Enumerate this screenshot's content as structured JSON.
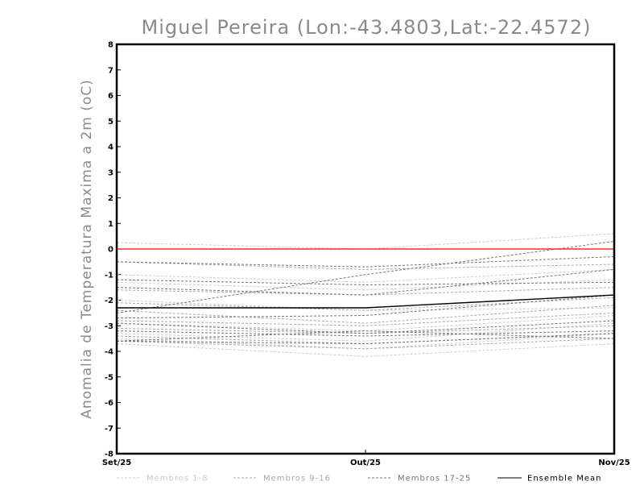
{
  "chart_data": {
    "type": "line",
    "title": "Miguel Pereira (Lon:-43.4803,Lat:-22.4572)",
    "ylabel": "Anomalia de Temperatura Maxima a 2m (oC)",
    "xlabel": "",
    "categories": [
      "Set/25",
      "Out/25",
      "Nov/25"
    ],
    "ylim": [
      -8,
      8
    ],
    "yticks": [
      "-8",
      "-7",
      "-6",
      "-5",
      "-4",
      "-3",
      "-2",
      "-1",
      "0",
      "1",
      "2",
      "3",
      "4",
      "5",
      "6",
      "7",
      "8"
    ],
    "reference_line": {
      "value": 0,
      "color": "#ff2a2a"
    },
    "grid": false,
    "legend": {
      "placement": "bottom",
      "entries": [
        {
          "label": "Membros 1-8",
          "color": "#cccccc",
          "style": "dashed"
        },
        {
          "label": "Membros 9-16",
          "color": "#aaaaaa",
          "style": "dashed"
        },
        {
          "label": "Membros 17-25",
          "color": "#777777",
          "style": "dashed"
        },
        {
          "label": "Ensemble Mean",
          "color": "#000000",
          "style": "solid"
        }
      ]
    },
    "groups": [
      {
        "color": "#cccccc",
        "members": [
          [
            0.25,
            0.0,
            0.6
          ],
          [
            -1.0,
            -1.3,
            -0.8
          ],
          [
            -1.3,
            -1.6,
            -1.2
          ],
          [
            -2.0,
            -2.4,
            -2.3
          ],
          [
            -2.9,
            -3.2,
            -2.6
          ],
          [
            -3.5,
            -3.9,
            -3.3
          ],
          [
            -3.7,
            -4.2,
            -3.7
          ],
          [
            -3.3,
            -3.6,
            -2.9
          ]
        ]
      },
      {
        "color": "#aaaaaa",
        "members": [
          [
            -0.5,
            -0.8,
            -0.6
          ],
          [
            -1.6,
            -1.8,
            -1.5
          ],
          [
            -2.1,
            -2.4,
            -1.9
          ],
          [
            -2.8,
            -3.0,
            -2.5
          ],
          [
            -3.1,
            -3.3,
            -3.0
          ],
          [
            -3.4,
            -3.7,
            -3.3
          ],
          [
            -3.6,
            -3.9,
            -3.5
          ],
          [
            -2.4,
            -2.9,
            -2.2
          ]
        ]
      },
      {
        "color": "#777777",
        "members": [
          [
            -2.5,
            -1.0,
            0.3
          ],
          [
            -0.5,
            -0.7,
            -0.3
          ],
          [
            -1.2,
            -1.4,
            -1.3
          ],
          [
            -1.5,
            -1.8,
            -0.8
          ],
          [
            -2.7,
            -2.6,
            -1.8
          ],
          [
            -2.9,
            -3.3,
            -2.8
          ],
          [
            -3.2,
            -3.4,
            -3.2
          ],
          [
            -3.6,
            -3.2,
            -3.5
          ],
          [
            -3.6,
            -3.7,
            -3.3
          ]
        ]
      }
    ],
    "ensemble_mean": {
      "color": "#000000",
      "values": [
        -2.3,
        -2.3,
        -1.8
      ]
    }
  }
}
